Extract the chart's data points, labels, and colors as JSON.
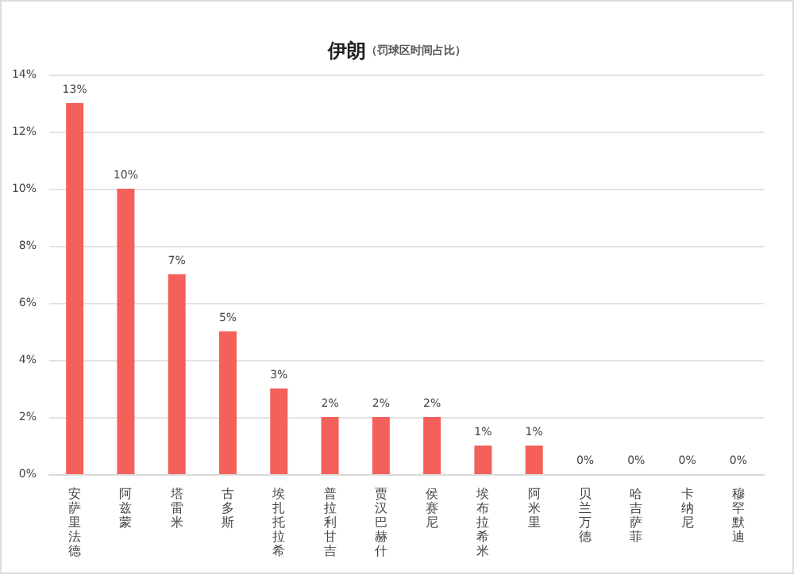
{
  "chart_data": {
    "type": "bar",
    "title": "伊朗",
    "subtitle": "（罚球区时间占比）",
    "categories": [
      "安萨里法德",
      "阿兹蒙",
      "塔雷米",
      "古多斯",
      "埃扎托拉希",
      "普拉利甘吉",
      "贾汉巴赫什",
      "侯赛尼",
      "埃布拉希米",
      "阿米里",
      "贝兰万德",
      "哈吉萨菲",
      "卡纳尼",
      "穆罕默迪"
    ],
    "values": [
      13,
      10,
      7,
      5,
      3,
      2,
      2,
      2,
      1,
      1,
      0,
      0,
      0,
      0
    ],
    "value_labels": [
      "13%",
      "10%",
      "7%",
      "5%",
      "3%",
      "2%",
      "2%",
      "2%",
      "1%",
      "1%",
      "0%",
      "0%",
      "0%",
      "0%"
    ],
    "color": "#f4605a",
    "ylim": [
      0,
      14
    ],
    "yticks": [
      {
        "value": 0,
        "label": "0%"
      },
      {
        "value": 2,
        "label": "2%"
      },
      {
        "value": 4,
        "label": "4%"
      },
      {
        "value": 6,
        "label": "6%"
      },
      {
        "value": 8,
        "label": "8%"
      },
      {
        "value": 10,
        "label": "10%"
      },
      {
        "value": 12,
        "label": "12%"
      },
      {
        "value": 14,
        "label": "14%"
      }
    ],
    "grid": "y"
  }
}
